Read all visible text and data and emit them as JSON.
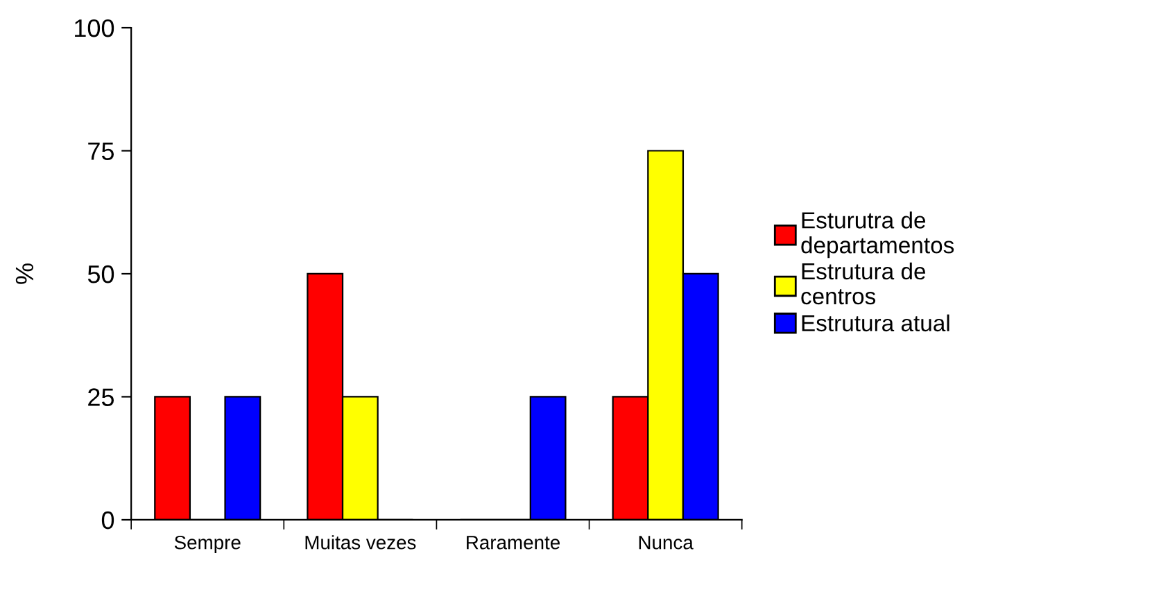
{
  "chart_data": {
    "type": "bar",
    "ylabel": "%",
    "categories": [
      "Sempre",
      "Muitas vezes",
      "Raramente",
      "Nunca"
    ],
    "series": [
      {
        "name": "Esturutra de departamentos",
        "color": "#ff0000",
        "values": [
          25,
          50,
          0,
          25
        ]
      },
      {
        "name": "Estrutura de centros",
        "color": "#ffff00",
        "values": [
          0,
          25,
          0,
          75
        ]
      },
      {
        "name": "Estrutura atual",
        "color": "#0000ff",
        "values": [
          25,
          0,
          25,
          50
        ]
      }
    ],
    "ylim": [
      0,
      100
    ],
    "yticks": [
      0,
      25,
      50,
      75,
      100
    ],
    "grid": false,
    "legend": "right"
  }
}
